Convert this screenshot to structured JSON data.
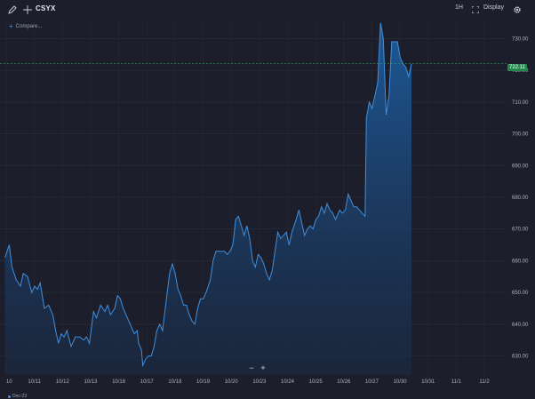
{
  "toolbar": {
    "draw_icon": "pencil-icon",
    "crosshair_icon": "crosshair-icon",
    "symbol": "CSYX",
    "interval_label": "1H",
    "fullscreen_icon": "fullscreen-icon",
    "display_label": "Display",
    "settings_icon": "gear-icon"
  },
  "compare": {
    "label": "Compare..."
  },
  "price_label": "722.11",
  "zoom": {
    "minus": "−",
    "plus": "+"
  },
  "legend": {
    "label": "Dec-23"
  },
  "colors": {
    "background": "#1c1f2b",
    "line": "#3f8fdf",
    "area_top": "#1c5a9a",
    "price": "#1f8a4c"
  },
  "chart_data": {
    "type": "area",
    "title": "",
    "xlabel": "",
    "ylabel": "",
    "ylim": [
      624,
      736
    ],
    "y_ticks": [
      630,
      640,
      650,
      660,
      670,
      680,
      690,
      700,
      710,
      720,
      730
    ],
    "y_tick_labels": [
      "630.00",
      "640.00",
      "650.00",
      "660.00",
      "670.00",
      "680.00",
      "690.00",
      "700.00",
      "710.00",
      "720.00",
      "730.00"
    ],
    "x_ticks": [
      {
        "label": "10",
        "x": 0
      },
      {
        "label": "10/11",
        "x": 1
      },
      {
        "label": "10/12",
        "x": 2
      },
      {
        "label": "10/13",
        "x": 3
      },
      {
        "label": "10/16",
        "x": 4
      },
      {
        "label": "10/17",
        "x": 5
      },
      {
        "label": "10/18",
        "x": 6
      },
      {
        "label": "10/19",
        "x": 7
      },
      {
        "label": "10/20",
        "x": 8
      },
      {
        "label": "10/23",
        "x": 9
      },
      {
        "label": "10/24",
        "x": 10
      },
      {
        "label": "10/25",
        "x": 11
      },
      {
        "label": "10/26",
        "x": 12
      },
      {
        "label": "10/27",
        "x": 13
      },
      {
        "label": "10/30",
        "x": 14
      },
      {
        "label": "10/31",
        "x": 15
      },
      {
        "label": "11/1",
        "x": 16
      },
      {
        "label": "11/2",
        "x": 17
      }
    ],
    "last_price": 722.11,
    "series": [
      {
        "values": [
          [
            -0.1,
            661
          ],
          [
            0.05,
            665
          ],
          [
            0.15,
            658
          ],
          [
            0.3,
            654
          ],
          [
            0.45,
            652
          ],
          [
            0.55,
            656
          ],
          [
            0.7,
            655
          ],
          [
            0.85,
            650
          ],
          [
            0.95,
            652
          ],
          [
            1.05,
            651
          ],
          [
            1.15,
            653
          ],
          [
            1.3,
            645
          ],
          [
            1.45,
            646
          ],
          [
            1.6,
            643
          ],
          [
            1.7,
            638
          ],
          [
            1.8,
            634
          ],
          [
            1.9,
            637
          ],
          [
            2.0,
            636
          ],
          [
            2.1,
            638
          ],
          [
            2.25,
            633
          ],
          [
            2.4,
            636
          ],
          [
            2.55,
            636
          ],
          [
            2.7,
            635
          ],
          [
            2.8,
            636
          ],
          [
            2.9,
            634
          ],
          [
            3.05,
            644
          ],
          [
            3.15,
            642
          ],
          [
            3.3,
            646
          ],
          [
            3.45,
            644
          ],
          [
            3.55,
            646
          ],
          [
            3.65,
            643
          ],
          [
            3.8,
            645
          ],
          [
            3.9,
            649
          ],
          [
            4.0,
            648
          ],
          [
            4.1,
            645
          ],
          [
            4.25,
            642
          ],
          [
            4.35,
            640
          ],
          [
            4.5,
            637
          ],
          [
            4.6,
            638
          ],
          [
            4.65,
            634
          ],
          [
            4.75,
            632
          ],
          [
            4.8,
            627
          ],
          [
            4.9,
            629
          ],
          [
            5.0,
            630
          ],
          [
            5.1,
            630
          ],
          [
            5.2,
            633
          ],
          [
            5.3,
            638
          ],
          [
            5.4,
            640
          ],
          [
            5.5,
            638
          ],
          [
            5.6,
            645
          ],
          [
            5.75,
            656
          ],
          [
            5.85,
            659
          ],
          [
            5.95,
            656
          ],
          [
            6.05,
            651
          ],
          [
            6.15,
            649
          ],
          [
            6.25,
            646
          ],
          [
            6.35,
            646
          ],
          [
            6.45,
            643
          ],
          [
            6.55,
            641
          ],
          [
            6.65,
            640
          ],
          [
            6.75,
            645
          ],
          [
            6.85,
            648
          ],
          [
            6.95,
            648
          ],
          [
            7.05,
            650
          ],
          [
            7.2,
            654
          ],
          [
            7.3,
            660
          ],
          [
            7.4,
            663
          ],
          [
            7.5,
            663
          ],
          [
            7.6,
            663
          ],
          [
            7.7,
            663
          ],
          [
            7.8,
            662
          ],
          [
            7.9,
            663
          ],
          [
            8.0,
            665
          ],
          [
            8.1,
            673
          ],
          [
            8.2,
            674
          ],
          [
            8.3,
            671
          ],
          [
            8.4,
            668
          ],
          [
            8.5,
            671
          ],
          [
            8.6,
            667
          ],
          [
            8.7,
            660
          ],
          [
            8.8,
            658
          ],
          [
            8.9,
            662
          ],
          [
            9.0,
            661
          ],
          [
            9.1,
            659
          ],
          [
            9.2,
            656
          ],
          [
            9.3,
            654
          ],
          [
            9.4,
            657
          ],
          [
            9.5,
            663
          ],
          [
            9.6,
            669
          ],
          [
            9.7,
            667
          ],
          [
            9.8,
            668
          ],
          [
            9.9,
            669
          ],
          [
            10.0,
            665
          ],
          [
            10.1,
            669
          ],
          [
            10.25,
            673
          ],
          [
            10.35,
            676
          ],
          [
            10.45,
            672
          ],
          [
            10.55,
            668
          ],
          [
            10.65,
            670
          ],
          [
            10.75,
            671
          ],
          [
            10.85,
            670
          ],
          [
            10.95,
            673
          ],
          [
            11.05,
            674
          ],
          [
            11.15,
            677
          ],
          [
            11.25,
            675
          ],
          [
            11.35,
            678
          ],
          [
            11.45,
            676
          ],
          [
            11.55,
            675
          ],
          [
            11.65,
            673
          ],
          [
            11.8,
            676
          ],
          [
            11.9,
            675
          ],
          [
            12.0,
            676
          ],
          [
            12.1,
            681
          ],
          [
            12.2,
            679
          ],
          [
            12.3,
            677
          ],
          [
            12.4,
            677
          ],
          [
            12.5,
            676
          ],
          [
            12.6,
            675
          ],
          [
            12.7,
            674
          ],
          [
            12.75,
            705
          ],
          [
            12.85,
            710
          ],
          [
            12.95,
            708
          ],
          [
            13.05,
            712
          ],
          [
            13.15,
            716
          ],
          [
            13.25,
            735
          ],
          [
            13.35,
            730
          ],
          [
            13.45,
            706
          ],
          [
            13.55,
            712
          ],
          [
            13.65,
            729
          ],
          [
            13.75,
            729
          ],
          [
            13.85,
            729
          ],
          [
            13.95,
            724
          ],
          [
            14.05,
            722
          ],
          [
            14.15,
            721
          ],
          [
            14.25,
            718
          ],
          [
            14.35,
            722
          ]
        ]
      }
    ]
  }
}
